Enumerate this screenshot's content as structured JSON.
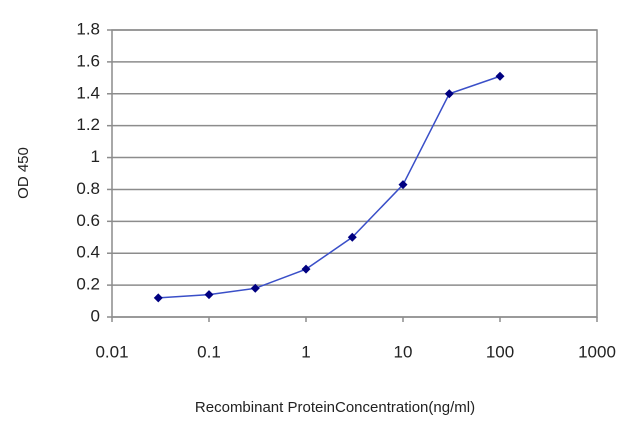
{
  "chart_data": {
    "type": "line",
    "x_label": "Recombinant ProteinConcentration(ng/ml)",
    "y_label": "OD 450",
    "x": [
      0.03,
      0.1,
      0.3,
      1,
      3,
      10,
      30,
      100
    ],
    "values": [
      0.12,
      0.14,
      0.18,
      0.3,
      0.5,
      0.83,
      1.4,
      1.51
    ],
    "color": "#000080",
    "line_color": "#3a4fc8",
    "x_log": true,
    "xlim": [
      0.01,
      1000
    ],
    "xticks": [
      0.01,
      0.1,
      1,
      10,
      100,
      1000
    ],
    "ylim": [
      0,
      1.8
    ],
    "yticks": [
      0,
      0.2,
      0.4,
      0.6,
      0.8,
      1,
      1.2,
      1.4,
      1.6,
      1.8
    ],
    "grid": true
  }
}
